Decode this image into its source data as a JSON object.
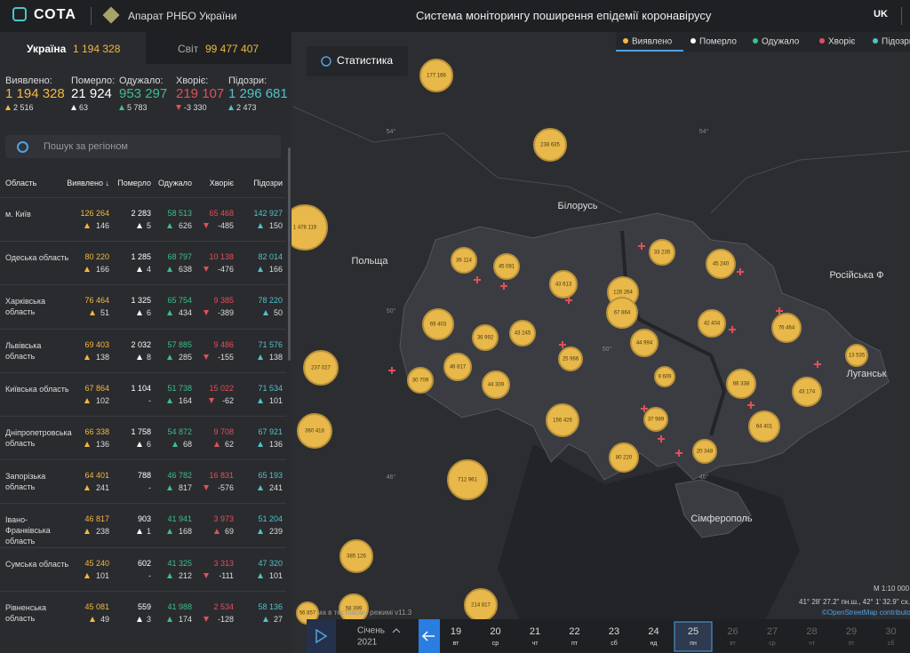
{
  "header": {
    "logo": "СОТА",
    "org": "Апарат РНБО України",
    "title": "Система моніторингу поширення епідемії коронавірусу",
    "lang": "UK"
  },
  "tabs": [
    {
      "label": "Україна",
      "value": "1 194 328"
    },
    {
      "label": "Світ",
      "value": "99 477 407"
    }
  ],
  "summary": [
    {
      "label": "Виявлено:",
      "value": "1 194 328",
      "delta": "2 516"
    },
    {
      "label": "Померло:",
      "value": "21 924",
      "delta": "63"
    },
    {
      "label": "Одужало:",
      "value": "953 297",
      "delta": "5 783"
    },
    {
      "label": "Хворіє:",
      "value": "219 107",
      "delta": "-3 330"
    },
    {
      "label": "Підозри:",
      "value": "1 296 681",
      "delta": "2 473"
    }
  ],
  "search": {
    "placeholder": "Пошук за регіоном"
  },
  "table": {
    "columns": [
      "Область",
      "Виявлено",
      "Померло",
      "Одужало",
      "Хворіє",
      "Підозри"
    ],
    "rows": [
      {
        "region": "м. Київ",
        "cells": [
          [
            "126 264",
            "146"
          ],
          [
            "2 283",
            "5"
          ],
          [
            "58 513",
            "626"
          ],
          [
            "65 468",
            "-485"
          ],
          [
            "142 927",
            "150"
          ]
        ]
      },
      {
        "region": "Одеська область",
        "cells": [
          [
            "80 220",
            "166"
          ],
          [
            "1 285",
            "4"
          ],
          [
            "68 797",
            "638"
          ],
          [
            "10 138",
            "-476"
          ],
          [
            "82 014",
            "166"
          ]
        ]
      },
      {
        "region": "Харківська область",
        "cells": [
          [
            "76 464",
            "51"
          ],
          [
            "1 325",
            "6"
          ],
          [
            "65 754",
            "434"
          ],
          [
            "9 385",
            "-389"
          ],
          [
            "78 220",
            "50"
          ]
        ]
      },
      {
        "region": "Львівська область",
        "cells": [
          [
            "69 403",
            "138"
          ],
          [
            "2 032",
            "8"
          ],
          [
            "57 885",
            "285"
          ],
          [
            "9 486",
            "-155"
          ],
          [
            "71 576",
            "138"
          ]
        ]
      },
      {
        "region": "Київська область",
        "cells": [
          [
            "67 864",
            "102"
          ],
          [
            "1 104",
            "-"
          ],
          [
            "51 738",
            "164"
          ],
          [
            "15 022",
            "-62"
          ],
          [
            "71 534",
            "101"
          ]
        ]
      },
      {
        "region": "Дніпропетровська область",
        "cells": [
          [
            "66 338",
            "136"
          ],
          [
            "1 758",
            "6"
          ],
          [
            "54 872",
            "68"
          ],
          [
            "9 708",
            "62"
          ],
          [
            "67 921",
            "136"
          ]
        ]
      },
      {
        "region": "Запорізька область",
        "cells": [
          [
            "64 401",
            "241"
          ],
          [
            "788",
            "-"
          ],
          [
            "46 782",
            "817"
          ],
          [
            "16 831",
            "-576"
          ],
          [
            "65 193",
            "241"
          ]
        ]
      },
      {
        "region": "Івано-Франківська область",
        "cells": [
          [
            "46 817",
            "238"
          ],
          [
            "903",
            "1"
          ],
          [
            "41 941",
            "168"
          ],
          [
            "3 973",
            "69"
          ],
          [
            "51 204",
            "239"
          ]
        ]
      },
      {
        "region": "Сумська область",
        "cells": [
          [
            "45 240",
            "101"
          ],
          [
            "602",
            "-"
          ],
          [
            "41 325",
            "212"
          ],
          [
            "3 313",
            "-111"
          ],
          [
            "47 320",
            "101"
          ]
        ]
      },
      {
        "region": "Рівненська область",
        "cells": [
          [
            "45 081",
            "49"
          ],
          [
            "559",
            "3"
          ],
          [
            "41 988",
            "174"
          ],
          [
            "2 534",
            "-128"
          ],
          [
            "58 136",
            "27"
          ]
        ]
      }
    ]
  },
  "map": {
    "button": "Статистика",
    "legend": [
      "Виявлено",
      "Померло",
      "Одужало",
      "Хворіє",
      "Підозри"
    ],
    "labels": [
      "Білорусь",
      "Польща",
      "Російська Ф",
      "Луганськ",
      "Сімферополь",
      "54°",
      "54°",
      "50°",
      "50°",
      "46°",
      "46°"
    ],
    "bubbles": [
      "177 166",
      "238 635",
      "1 478 119",
      "36 114",
      "45 081",
      "43 613",
      "126 264",
      "67 864",
      "33 235",
      "45 240",
      "69 403",
      "36 992",
      "43 245",
      "44 994",
      "42 404",
      "76 464",
      "13 535",
      "237 027",
      "30 709",
      "46 817",
      "44 309",
      "25 966",
      "9 609",
      "66 338",
      "43 174",
      "360 418",
      "156 426",
      "37 989",
      "64 401",
      "80 220",
      "20 348",
      "712 961",
      "385 126",
      "58 399",
      "214 817",
      "56 857"
    ],
    "scale": "М 1:10 000",
    "coords": "41° 28' 27.2\" пн.ш., 42° 1' 32.9\" сх.д.",
    "attribution": "©OpenStreetMap contributors",
    "footer": "ма в тестовому режимі v11.3"
  },
  "timeline": {
    "month": "Січень",
    "year": "2021",
    "days": [
      {
        "day": "19",
        "weekday": "вт"
      },
      {
        "day": "20",
        "weekday": "ср"
      },
      {
        "day": "21",
        "weekday": "чт"
      },
      {
        "day": "22",
        "weekday": "пт"
      },
      {
        "day": "23",
        "weekday": "сб"
      },
      {
        "day": "24",
        "weekday": "нд"
      },
      {
        "day": "25",
        "weekday": "пн"
      },
      {
        "day": "26",
        "weekday": "вт"
      },
      {
        "day": "27",
        "weekday": "ср"
      },
      {
        "day": "28",
        "weekday": "чт"
      },
      {
        "day": "29",
        "weekday": "пт"
      },
      {
        "day": "30",
        "weekday": "сб"
      }
    ]
  }
}
